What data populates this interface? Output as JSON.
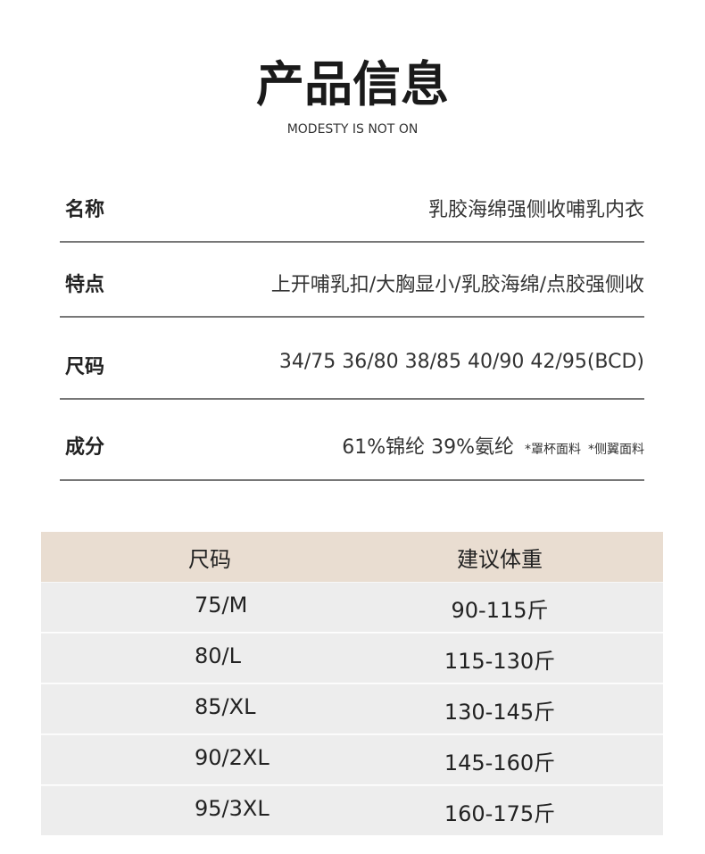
{
  "header": {
    "title": "产品信息",
    "subtitle": "MODESTY IS NOT ON"
  },
  "specs": [
    {
      "label": "名称",
      "value": "乳胶海绵强侧收哺乳内衣"
    },
    {
      "label": "特点",
      "value": "上开哺乳扣/大胸显小/乳胶海绵/点胶强侧收"
    },
    {
      "label": "尺码",
      "value": "34/75 36/80 38/85 40/90 42/95(BCD)"
    },
    {
      "label": "成分",
      "value": "61%锦纶 39%氨纶",
      "notes": [
        "*罩杯面料",
        "*侧翼面料"
      ]
    }
  ],
  "table": {
    "columns": [
      "尺码",
      "建议体重"
    ],
    "rows": [
      [
        "75/M",
        "90-115斤"
      ],
      [
        "80/L",
        "115-130斤"
      ],
      [
        "85/XL",
        "130-145斤"
      ],
      [
        "90/2XL",
        "145-160斤"
      ],
      [
        "95/3XL",
        "160-175斤"
      ]
    ]
  }
}
